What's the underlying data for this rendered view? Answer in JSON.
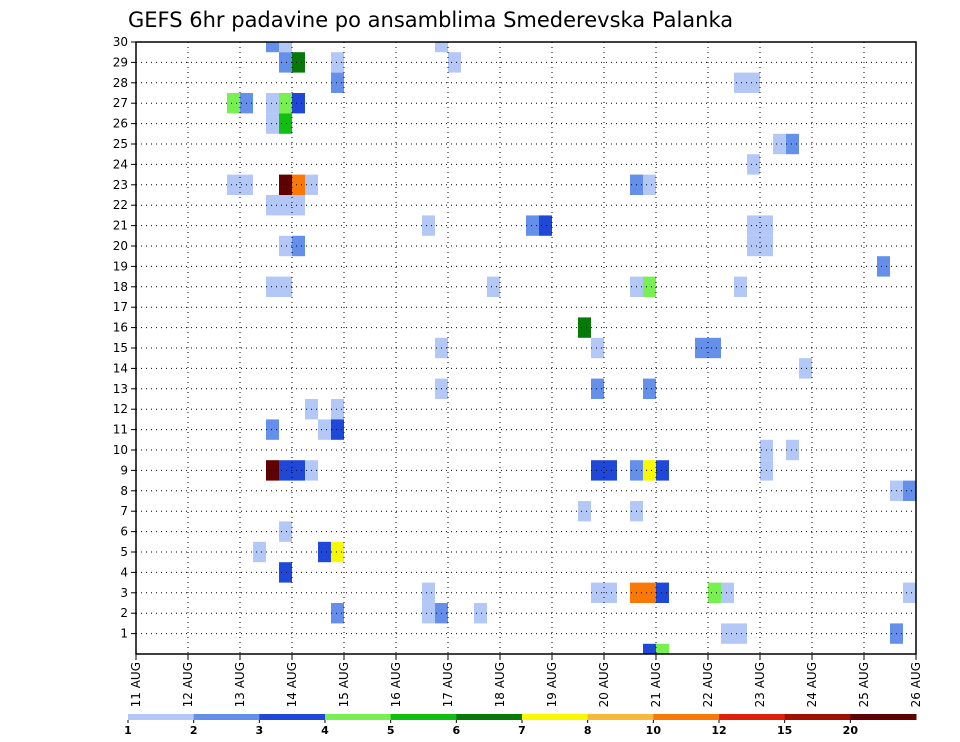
{
  "chart_data": {
    "type": "heatmap",
    "title": "GEFS 6hr padavine po ansamblima Smederevska Palanka",
    "x_tick_labels": [
      "11 AUG",
      "12 AUG",
      "13 AUG",
      "14 AUG",
      "15 AUG",
      "16 AUG",
      "17 AUG",
      "18 AUG",
      "19 AUG",
      "20 AUG",
      "21 AUG",
      "22 AUG",
      "23 AUG",
      "24 AUG",
      "25 AUG",
      "26 AUG"
    ],
    "y_tick_labels": [
      "1",
      "2",
      "3",
      "4",
      "5",
      "6",
      "7",
      "8",
      "9",
      "10",
      "11",
      "12",
      "13",
      "14",
      "15",
      "16",
      "17",
      "18",
      "19",
      "20",
      "21",
      "22",
      "23",
      "24",
      "25",
      "26",
      "27",
      "28",
      "29",
      "30"
    ],
    "xlim": [
      0,
      15
    ],
    "ylim": [
      0,
      30
    ],
    "grid": true,
    "x_units": "days after 11 AUG (x=k is day k past 11 AUG 00Z); each cell spans 6 h",
    "y_units": "ensemble member",
    "colorbar": {
      "colors": [
        "#b4c8f8",
        "#6490ec",
        "#2048d8",
        "#78f050",
        "#10c010",
        "#087808",
        "#f8f800",
        "#f8b838",
        "#f87808",
        "#e02008",
        "#a01000",
        "#600000"
      ],
      "labels": [
        "1",
        "2",
        "3",
        "4",
        "5",
        "6",
        "7",
        "8",
        "10",
        "12",
        "15",
        "20"
      ]
    },
    "cells": [
      {
        "x": 2.5,
        "y": 30,
        "c": 1
      },
      {
        "x": 2.75,
        "y": 30,
        "c": 0
      },
      {
        "x": 5.75,
        "y": 30,
        "c": 0
      },
      {
        "x": 2.75,
        "y": 29,
        "c": 1
      },
      {
        "x": 3.0,
        "y": 29,
        "c": 5
      },
      {
        "x": 3.75,
        "y": 29,
        "c": 0
      },
      {
        "x": 6.0,
        "y": 29,
        "c": 0
      },
      {
        "x": 3.75,
        "y": 28,
        "c": 1
      },
      {
        "x": 11.5,
        "y": 28,
        "c": 0
      },
      {
        "x": 11.75,
        "y": 28,
        "c": 0
      },
      {
        "x": 1.75,
        "y": 27,
        "c": 3
      },
      {
        "x": 2.0,
        "y": 27,
        "c": 1
      },
      {
        "x": 2.5,
        "y": 27,
        "c": 0
      },
      {
        "x": 2.75,
        "y": 27,
        "c": 3
      },
      {
        "x": 3.0,
        "y": 27,
        "c": 2
      },
      {
        "x": 2.5,
        "y": 26,
        "c": 0
      },
      {
        "x": 2.75,
        "y": 26,
        "c": 4
      },
      {
        "x": 12.25,
        "y": 25,
        "c": 0
      },
      {
        "x": 12.5,
        "y": 25,
        "c": 1
      },
      {
        "x": 11.75,
        "y": 24,
        "c": 0
      },
      {
        "x": 1.75,
        "y": 23,
        "c": 0
      },
      {
        "x": 2.0,
        "y": 23,
        "c": 0
      },
      {
        "x": 2.75,
        "y": 23,
        "c": 11
      },
      {
        "x": 3.0,
        "y": 23,
        "c": 8
      },
      {
        "x": 3.25,
        "y": 23,
        "c": 0
      },
      {
        "x": 9.5,
        "y": 23,
        "c": 1
      },
      {
        "x": 9.75,
        "y": 23,
        "c": 0
      },
      {
        "x": 2.5,
        "y": 22,
        "c": 0
      },
      {
        "x": 2.75,
        "y": 22,
        "c": 0
      },
      {
        "x": 3.0,
        "y": 22,
        "c": 0
      },
      {
        "x": 5.5,
        "y": 21,
        "c": 0
      },
      {
        "x": 7.5,
        "y": 21,
        "c": 1
      },
      {
        "x": 7.75,
        "y": 21,
        "c": 2
      },
      {
        "x": 11.75,
        "y": 21,
        "c": 0
      },
      {
        "x": 12.0,
        "y": 21,
        "c": 0
      },
      {
        "x": 2.75,
        "y": 20,
        "c": 0
      },
      {
        "x": 3.0,
        "y": 20,
        "c": 1
      },
      {
        "x": 11.75,
        "y": 20,
        "c": 0
      },
      {
        "x": 12.0,
        "y": 20,
        "c": 0
      },
      {
        "x": 14.25,
        "y": 19,
        "c": 1
      },
      {
        "x": 2.5,
        "y": 18,
        "c": 0
      },
      {
        "x": 2.75,
        "y": 18,
        "c": 0
      },
      {
        "x": 6.75,
        "y": 18,
        "c": 0
      },
      {
        "x": 9.5,
        "y": 18,
        "c": 0
      },
      {
        "x": 9.75,
        "y": 18,
        "c": 3
      },
      {
        "x": 11.5,
        "y": 18,
        "c": 0
      },
      {
        "x": 8.5,
        "y": 16,
        "c": 5
      },
      {
        "x": 5.75,
        "y": 15,
        "c": 0
      },
      {
        "x": 8.75,
        "y": 15,
        "c": 0
      },
      {
        "x": 10.75,
        "y": 15,
        "c": 1
      },
      {
        "x": 11.0,
        "y": 15,
        "c": 1
      },
      {
        "x": 12.75,
        "y": 14,
        "c": 0
      },
      {
        "x": 5.75,
        "y": 13,
        "c": 0
      },
      {
        "x": 8.75,
        "y": 13,
        "c": 1
      },
      {
        "x": 9.75,
        "y": 13,
        "c": 1
      },
      {
        "x": 3.25,
        "y": 12,
        "c": 0
      },
      {
        "x": 3.75,
        "y": 12,
        "c": 0
      },
      {
        "x": 2.5,
        "y": 11,
        "c": 1
      },
      {
        "x": 3.5,
        "y": 11,
        "c": 0
      },
      {
        "x": 3.75,
        "y": 11,
        "c": 2
      },
      {
        "x": 12.0,
        "y": 10,
        "c": 0
      },
      {
        "x": 12.5,
        "y": 10,
        "c": 0
      },
      {
        "x": 2.5,
        "y": 9,
        "c": 11
      },
      {
        "x": 2.75,
        "y": 9,
        "c": 2
      },
      {
        "x": 3.0,
        "y": 9,
        "c": 2
      },
      {
        "x": 3.25,
        "y": 9,
        "c": 0
      },
      {
        "x": 8.75,
        "y": 9,
        "c": 2
      },
      {
        "x": 9.0,
        "y": 9,
        "c": 2
      },
      {
        "x": 9.5,
        "y": 9,
        "c": 1
      },
      {
        "x": 9.75,
        "y": 9,
        "c": 6
      },
      {
        "x": 10.0,
        "y": 9,
        "c": 2
      },
      {
        "x": 12.0,
        "y": 9,
        "c": 0
      },
      {
        "x": 14.5,
        "y": 8,
        "c": 0
      },
      {
        "x": 14.75,
        "y": 8,
        "c": 1
      },
      {
        "x": 8.5,
        "y": 7,
        "c": 0
      },
      {
        "x": 9.5,
        "y": 7,
        "c": 0
      },
      {
        "x": 2.75,
        "y": 6,
        "c": 0
      },
      {
        "x": 2.25,
        "y": 5,
        "c": 0
      },
      {
        "x": 3.5,
        "y": 5,
        "c": 2
      },
      {
        "x": 3.75,
        "y": 5,
        "c": 6
      },
      {
        "x": 2.75,
        "y": 4,
        "c": 2
      },
      {
        "x": 5.5,
        "y": 3,
        "c": 0
      },
      {
        "x": 8.75,
        "y": 3,
        "c": 0
      },
      {
        "x": 9.0,
        "y": 3,
        "c": 0
      },
      {
        "x": 9.5,
        "y": 3,
        "c": 8
      },
      {
        "x": 9.75,
        "y": 3,
        "c": 8
      },
      {
        "x": 10.0,
        "y": 3,
        "c": 2
      },
      {
        "x": 11.0,
        "y": 3,
        "c": 3
      },
      {
        "x": 11.25,
        "y": 3,
        "c": 0
      },
      {
        "x": 14.75,
        "y": 3,
        "c": 0
      },
      {
        "x": 3.75,
        "y": 2,
        "c": 1
      },
      {
        "x": 5.5,
        "y": 2,
        "c": 0
      },
      {
        "x": 5.75,
        "y": 2,
        "c": 1
      },
      {
        "x": 6.5,
        "y": 2,
        "c": 0
      },
      {
        "x": 11.25,
        "y": 1,
        "c": 0
      },
      {
        "x": 11.5,
        "y": 1,
        "c": 0
      },
      {
        "x": 14.5,
        "y": 1,
        "c": 1
      },
      {
        "x": 9.75,
        "y": 0,
        "c": 2
      },
      {
        "x": 10.0,
        "y": 0,
        "c": 3
      }
    ]
  }
}
